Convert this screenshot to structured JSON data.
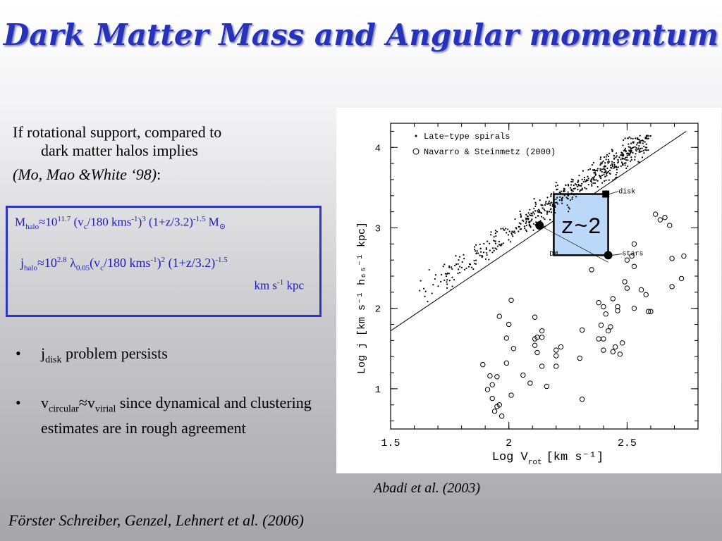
{
  "title": "Dark Matter Mass and Angular momentum",
  "intro": {
    "line1": "If rotational support, compared to",
    "line2": "dark matter halos implies",
    "citation": "(Mo, Mao &White ‘98)",
    "colon": ":"
  },
  "formula_box": {
    "mhalo": {
      "M": "M",
      "sub_halo": "halo",
      "approx": "≈10",
      "exp1": "11.7",
      "paren1": " (v",
      "sub_c": "c",
      "div": "/180 kms",
      "exp_m1": "-1",
      "close": ")",
      "exp3": "3",
      "paren2": " (1+z/3.2)",
      "exp_m15": "-1.5",
      "Msun": " M",
      "sun": "⊙"
    },
    "jhalo": {
      "j": "j",
      "sub_halo": "halo",
      "approx": "≈10",
      "exp": "2.8",
      "lambda": " λ",
      "sub_lam": "0.05",
      "paren1": "(v",
      "sub_c": "c",
      "div": "/180 kms",
      "exp_m1": "-1",
      "close": ")",
      "exp2": "2",
      "paren2": " (1+z/3.2)",
      "exp_m15": "-1.5"
    },
    "units": {
      "text": "km s",
      "exp": "-1",
      "tail": " kpc"
    }
  },
  "bullets": [
    {
      "symbol": "•",
      "main": "j",
      "sub": "disk",
      "rest": " problem persists"
    },
    {
      "symbol": "•",
      "main": "v",
      "sub": "circular",
      "approx": "≈v",
      "sub2": "virial",
      "rest": " since dynamical and clustering estimates are in rough agreement"
    }
  ],
  "chart_data": {
    "type": "scatter",
    "xlabel": "Log V",
    "xlabel_sub": "rot",
    "xlabel_units": "[km s⁻¹]",
    "ylabel": "Log j [km s⁻¹ h₆₅⁻¹ kpc]",
    "xlim": [
      1.5,
      2.8
    ],
    "ylim": [
      0.5,
      4.3
    ],
    "xticks": [
      "1.5",
      "2",
      "2.5"
    ],
    "xtick_values": [
      1.5,
      2.0,
      2.5
    ],
    "yticks": [
      "1",
      "2",
      "3",
      "4"
    ],
    "ytick_values": [
      1,
      2,
      3,
      4
    ],
    "legend": [
      {
        "marker": "dot",
        "label": "Late−type spirals"
      },
      {
        "marker": "circle",
        "label": "Navarro & Steinmetz (2000)"
      }
    ],
    "fit_line": {
      "x": [
        1.5,
        2.75
      ],
      "y": [
        1.72,
        4.2
      ]
    },
    "late_type_spirals_note": "dense cloud of points along fit line from x≈1.6 to 2.6",
    "late_type_spirals_center": {
      "x0": 1.7,
      "y0": 2.35,
      "slope": 2.0
    },
    "navarro_steinmetz": [
      [
        1.89,
        1.3
      ],
      [
        1.92,
        1.16
      ],
      [
        1.93,
        1.05
      ],
      [
        1.91,
        0.99
      ],
      [
        1.93,
        0.88
      ],
      [
        1.96,
        0.8
      ],
      [
        1.95,
        0.78
      ],
      [
        1.97,
        0.66
      ],
      [
        1.94,
        0.72
      ],
      [
        1.95,
        1.15
      ],
      [
        1.96,
        1.9
      ],
      [
        1.99,
        1.63
      ],
      [
        1.99,
        1.32
      ],
      [
        2.01,
        2.1
      ],
      [
        2.0,
        1.8
      ],
      [
        2.02,
        1.5
      ],
      [
        2.01,
        0.92
      ],
      [
        2.06,
        1.17
      ],
      [
        2.09,
        1.07
      ],
      [
        2.11,
        1.54
      ],
      [
        2.11,
        1.62
      ],
      [
        2.12,
        1.64
      ],
      [
        2.11,
        1.89
      ],
      [
        2.12,
        1.45
      ],
      [
        2.14,
        1.72
      ],
      [
        2.14,
        1.64
      ],
      [
        2.14,
        1.28
      ],
      [
        2.16,
        1.03
      ],
      [
        2.2,
        1.48
      ],
      [
        2.2,
        1.41
      ],
      [
        2.2,
        1.28
      ],
      [
        2.22,
        1.52
      ],
      [
        2.31,
        0.87
      ],
      [
        2.3,
        1.38
      ],
      [
        2.31,
        1.73
      ],
      [
        2.35,
        2.48
      ],
      [
        2.38,
        2.07
      ],
      [
        2.38,
        1.62
      ],
      [
        2.4,
        1.62
      ],
      [
        2.4,
        1.48
      ],
      [
        2.39,
        1.79
      ],
      [
        2.4,
        2.02
      ],
      [
        2.41,
        1.93
      ],
      [
        2.43,
        1.77
      ],
      [
        2.42,
        1.72
      ],
      [
        2.44,
        1.46
      ],
      [
        2.45,
        1.52
      ],
      [
        2.46,
        2.02
      ],
      [
        2.44,
        2.12
      ],
      [
        2.46,
        1.97
      ],
      [
        2.48,
        1.57
      ],
      [
        2.47,
        1.43
      ],
      [
        2.49,
        2.33
      ],
      [
        2.5,
        2.6
      ],
      [
        2.53,
        2.8
      ],
      [
        2.52,
        2.65
      ],
      [
        2.53,
        2.0
      ],
      [
        2.56,
        2.23
      ],
      [
        2.58,
        2.17
      ],
      [
        2.59,
        1.96
      ],
      [
        2.6,
        1.96
      ],
      [
        2.53,
        2.52
      ],
      [
        2.62,
        3.17
      ],
      [
        2.64,
        3.1
      ],
      [
        2.66,
        3.13
      ],
      [
        2.68,
        3.03
      ],
      [
        2.69,
        2.62
      ],
      [
        2.69,
        2.27
      ],
      [
        2.74,
        2.65
      ],
      [
        2.73,
        2.37
      ],
      [
        2.5,
        2.25
      ]
    ],
    "annotations": [
      {
        "label": "disk",
        "x": 2.41,
        "y": 3.42,
        "marker": "square"
      },
      {
        "label": "stars",
        "x": 2.42,
        "y": 2.66,
        "marker": "big-dot"
      },
      {
        "label": "DM",
        "x": 2.13,
        "y": 3.03,
        "marker": "diamond"
      },
      {
        "label": "z~2",
        "x1": 2.19,
        "x2": 2.42,
        "y1": 2.66,
        "y2": 3.42,
        "marker": "highlight-box",
        "color": "#bcd8f8"
      }
    ]
  },
  "captions": {
    "figure": "Abadi et al. (2003)",
    "source": "Förster Schreiber, Genzel, Lehnert et al. (2006)"
  },
  "colors": {
    "title": "#2633b8",
    "formula": "#1a1abf",
    "box_border": "#2b35c9",
    "highlight": "#bcd8f8"
  }
}
